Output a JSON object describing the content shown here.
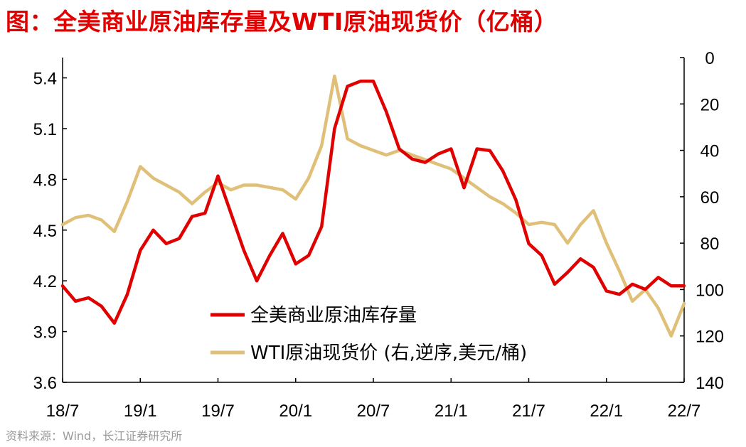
{
  "title": "图：全美商业原油库存量及WTI原油现货价（亿桶）",
  "source": "资料来源：Wind，长江证券研究所",
  "colors": {
    "inventory": "#e00000",
    "wti": "#e0bf78",
    "title": "#e00000"
  },
  "chart_data": {
    "type": "line",
    "x_ticks": [
      "18/7",
      "19/1",
      "19/7",
      "20/1",
      "20/7",
      "21/1",
      "21/7",
      "22/1",
      "22/7"
    ],
    "y_left": {
      "ticks": [
        "3.6",
        "3.9",
        "4.2",
        "4.5",
        "4.8",
        "5.1",
        "5.4"
      ],
      "range": [
        3.6,
        5.52
      ]
    },
    "y_right": {
      "ticks": [
        "0",
        "20",
        "40",
        "60",
        "80",
        "100",
        "120",
        "140"
      ],
      "range": [
        0,
        140
      ],
      "inverted": true
    },
    "legend": [
      "全美商业原油库存量",
      "WTI原油现货价 (右,逆序,美元/桶)"
    ],
    "series": [
      {
        "name": "全美商业原油库存量",
        "axis": "left",
        "points": [
          [
            "2018-07",
            4.17
          ],
          [
            "2018-08",
            4.08
          ],
          [
            "2018-09",
            4.1
          ],
          [
            "2018-10",
            4.05
          ],
          [
            "2018-11",
            3.95
          ],
          [
            "2018-12",
            4.12
          ],
          [
            "2019-01",
            4.38
          ],
          [
            "2019-02",
            4.5
          ],
          [
            "2019-03",
            4.42
          ],
          [
            "2019-04",
            4.45
          ],
          [
            "2019-05",
            4.58
          ],
          [
            "2019-06",
            4.6
          ],
          [
            "2019-07",
            4.82
          ],
          [
            "2019-08",
            4.6
          ],
          [
            "2019-09",
            4.38
          ],
          [
            "2019-10",
            4.2
          ],
          [
            "2019-11",
            4.35
          ],
          [
            "2019-12",
            4.48
          ],
          [
            "2020-01",
            4.3
          ],
          [
            "2020-02",
            4.35
          ],
          [
            "2020-03",
            4.52
          ],
          [
            "2020-04",
            5.1
          ],
          [
            "2020-05",
            5.35
          ],
          [
            "2020-06",
            5.38
          ],
          [
            "2020-07",
            5.38
          ],
          [
            "2020-08",
            5.2
          ],
          [
            "2020-09",
            4.98
          ],
          [
            "2020-10",
            4.92
          ],
          [
            "2020-11",
            4.9
          ],
          [
            "2020-12",
            4.95
          ],
          [
            "2021-01",
            4.98
          ],
          [
            "2021-02",
            4.75
          ],
          [
            "2021-03",
            4.98
          ],
          [
            "2021-04",
            4.97
          ],
          [
            "2021-05",
            4.85
          ],
          [
            "2021-06",
            4.68
          ],
          [
            "2021-07",
            4.42
          ],
          [
            "2021-08",
            4.35
          ],
          [
            "2021-09",
            4.18
          ],
          [
            "2021-10",
            4.25
          ],
          [
            "2021-11",
            4.33
          ],
          [
            "2021-12",
            4.28
          ],
          [
            "2022-01",
            4.14
          ],
          [
            "2022-02",
            4.12
          ],
          [
            "2022-03",
            4.18
          ],
          [
            "2022-04",
            4.15
          ],
          [
            "2022-05",
            4.22
          ],
          [
            "2022-06",
            4.17
          ],
          [
            "2022-07",
            4.17
          ]
        ]
      },
      {
        "name": "WTI原油现货价 (右,逆序,美元/桶)",
        "axis": "right",
        "points": [
          [
            "2018-07",
            72
          ],
          [
            "2018-08",
            69
          ],
          [
            "2018-09",
            68
          ],
          [
            "2018-10",
            70
          ],
          [
            "2018-11",
            75
          ],
          [
            "2018-12",
            62
          ],
          [
            "2019-01",
            47
          ],
          [
            "2019-02",
            52
          ],
          [
            "2019-03",
            55
          ],
          [
            "2019-04",
            58
          ],
          [
            "2019-05",
            63
          ],
          [
            "2019-06",
            58
          ],
          [
            "2019-07",
            54
          ],
          [
            "2019-08",
            57
          ],
          [
            "2019-09",
            55
          ],
          [
            "2019-10",
            55
          ],
          [
            "2019-11",
            56
          ],
          [
            "2019-12",
            57
          ],
          [
            "2020-01",
            61
          ],
          [
            "2020-02",
            52
          ],
          [
            "2020-03",
            38
          ],
          [
            "2020-04",
            8
          ],
          [
            "2020-05",
            35
          ],
          [
            "2020-06",
            38
          ],
          [
            "2020-07",
            40
          ],
          [
            "2020-08",
            42
          ],
          [
            "2020-09",
            40
          ],
          [
            "2020-10",
            42
          ],
          [
            "2020-11",
            44
          ],
          [
            "2020-12",
            46
          ],
          [
            "2021-01",
            48
          ],
          [
            "2021-02",
            52
          ],
          [
            "2021-03",
            56
          ],
          [
            "2021-04",
            60
          ],
          [
            "2021-05",
            63
          ],
          [
            "2021-06",
            67
          ],
          [
            "2021-07",
            72
          ],
          [
            "2021-08",
            71
          ],
          [
            "2021-09",
            72
          ],
          [
            "2021-10",
            80
          ],
          [
            "2021-11",
            72
          ],
          [
            "2021-12",
            66
          ],
          [
            "2022-01",
            80
          ],
          [
            "2022-02",
            92
          ],
          [
            "2022-03",
            105
          ],
          [
            "2022-04",
            100
          ],
          [
            "2022-05",
            108
          ],
          [
            "2022-06",
            120
          ],
          [
            "2022-07",
            106
          ]
        ]
      }
    ]
  }
}
